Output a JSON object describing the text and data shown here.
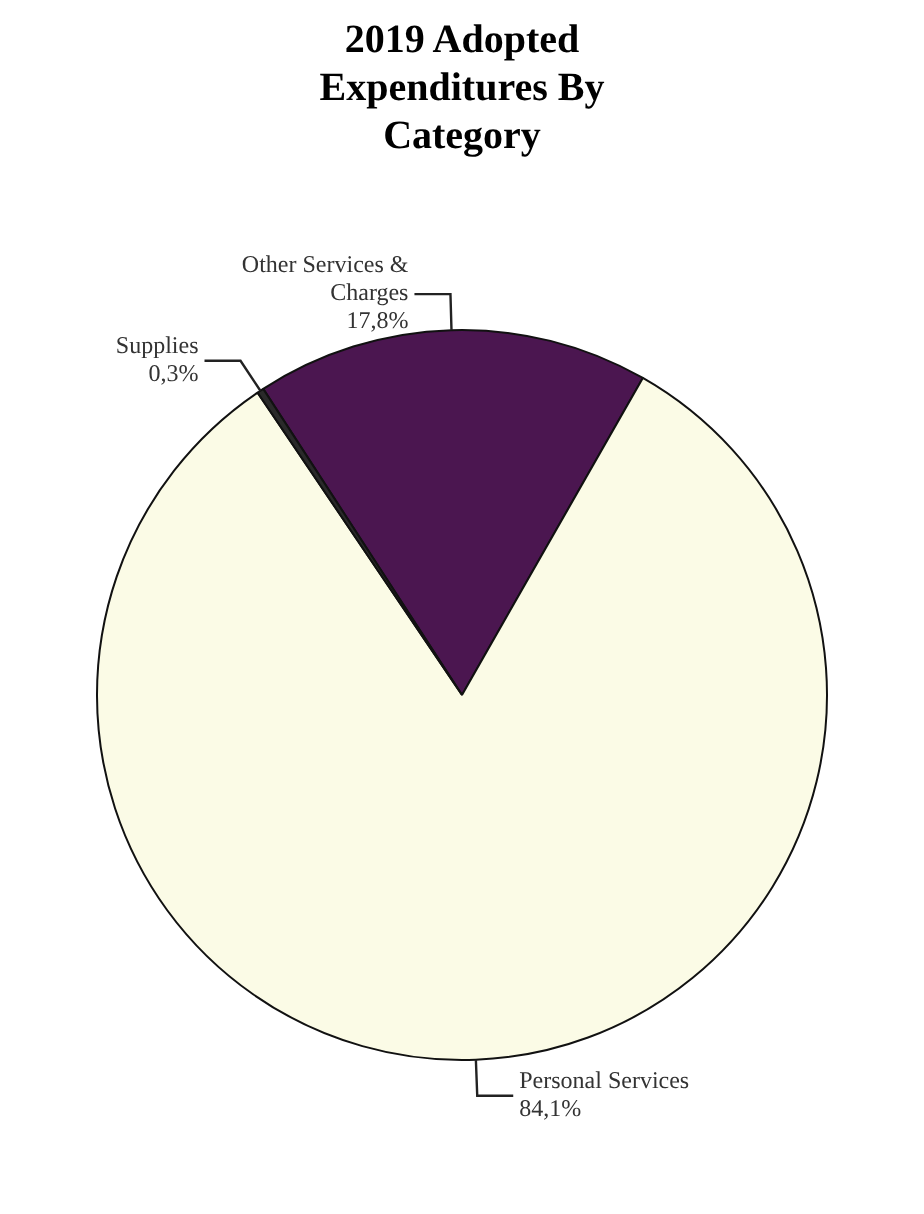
{
  "chart_data": {
    "type": "pie",
    "title": "2019 Adopted Expenditures By Category",
    "categories": [
      "Other Services & Charges",
      "Personal Services",
      "Supplies"
    ],
    "values": [
      17.8,
      84.1,
      0.3
    ],
    "value_labels": [
      "17,8%",
      "84,1%",
      "0,3%"
    ],
    "colors": [
      "#4b1650",
      "#fbfbe6",
      "#2a2a2a"
    ],
    "legend": false
  }
}
